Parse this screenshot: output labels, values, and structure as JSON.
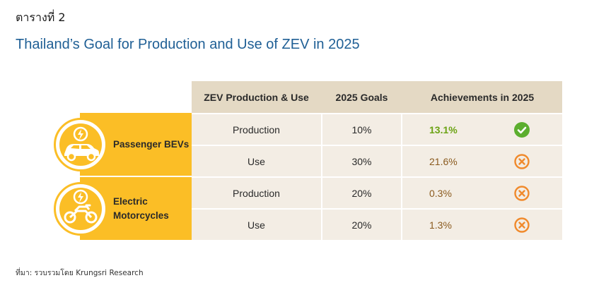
{
  "table_label": "ตารางที่ 2",
  "title": "Thailand’s Goal for Production and Use of ZEV in 2025",
  "columns": [
    "ZEV Production & Use",
    "2025 Goals",
    "Achievements in 2025"
  ],
  "categories": [
    {
      "name_line1": "Passenger BEVs",
      "name_line2": "",
      "icon": "ev-car-icon"
    },
    {
      "name_line1": "Electric",
      "name_line2": "Motorcycles",
      "icon": "electric-motorcycle-icon"
    }
  ],
  "rows": [
    {
      "type": "Production",
      "goal": "10%",
      "achievement": "13.1%",
      "status": "achieved"
    },
    {
      "type": "Use",
      "goal": "30%",
      "achievement": "21.6%",
      "status": "not-achieved"
    },
    {
      "type": "Production",
      "goal": "20%",
      "achievement": "0.3%",
      "status": "not-achieved"
    },
    {
      "type": "Use",
      "goal": "20%",
      "achievement": "1.3%",
      "status": "not-achieved"
    }
  ],
  "colors": {
    "achieved": "#5cae2e",
    "not_achieved": "#f08a2c",
    "category": "#fbbe26",
    "header": "#e4d9c4",
    "cell": "#f3ede4"
  },
  "source": "ที่มา: รวบรวมโดย Krungsri Research"
}
